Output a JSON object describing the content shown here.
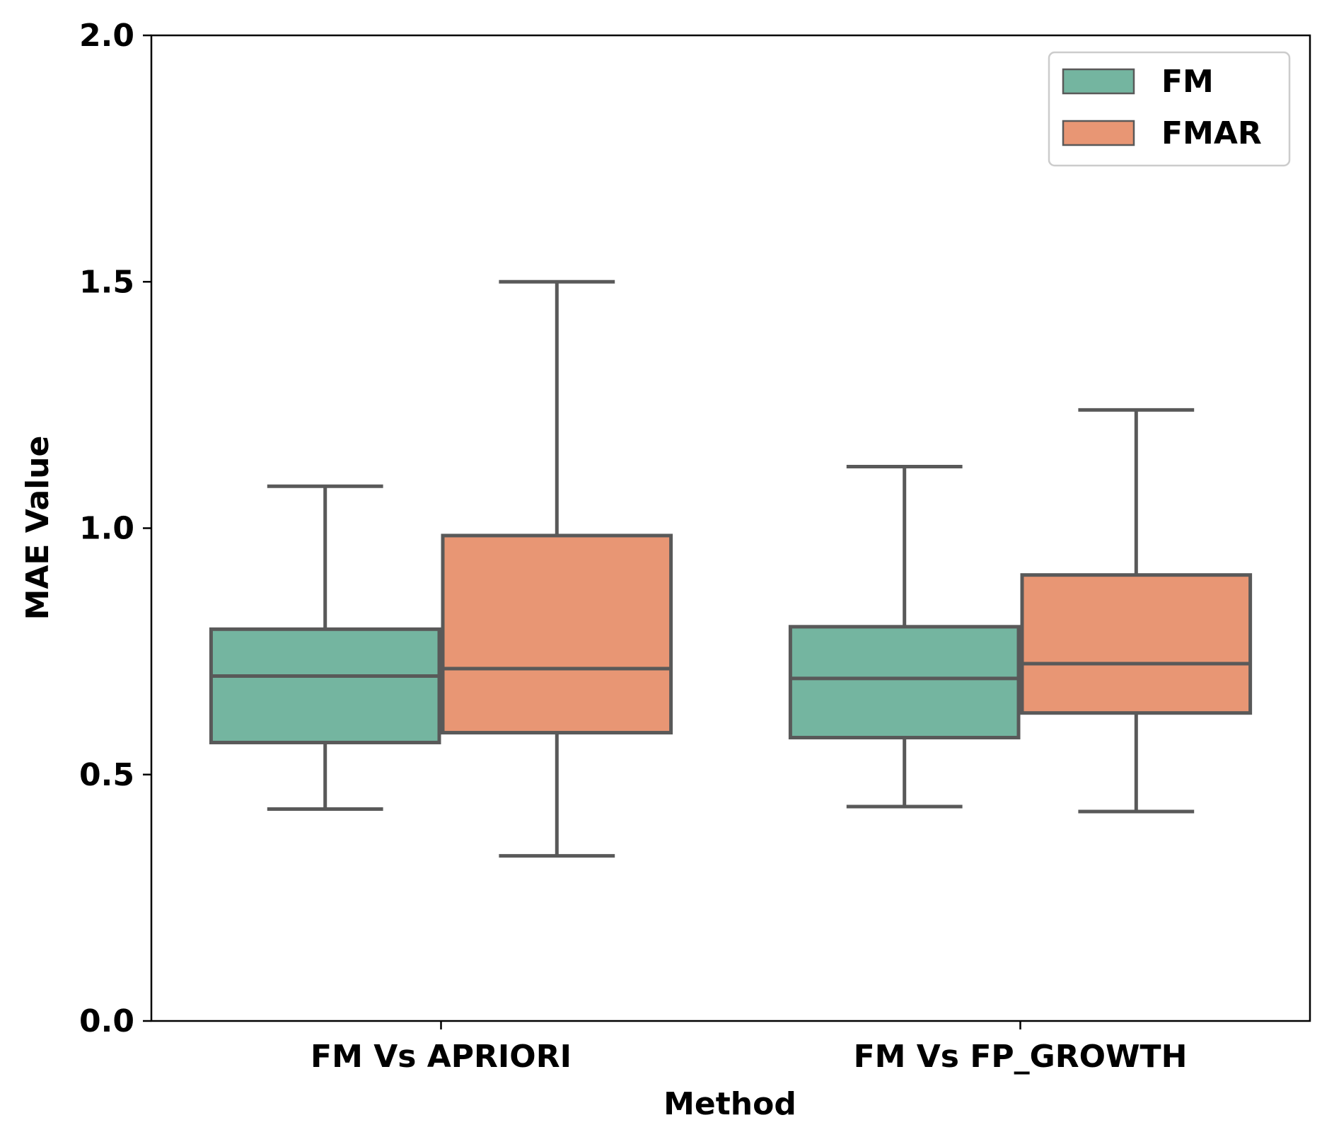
{
  "chart_data": {
    "type": "boxplot",
    "title": "",
    "xlabel": "Method",
    "ylabel": "MAE Value",
    "ylim": [
      0.0,
      2.0
    ],
    "yticks": [
      "0.0",
      "0.5",
      "1.0",
      "1.5",
      "2.0"
    ],
    "yticks_values": [
      0.0,
      0.5,
      1.0,
      1.5,
      2.0
    ],
    "categories": [
      "FM Vs APRIORI",
      "FM Vs FP_GROWTH"
    ],
    "legend": {
      "position": "top-right"
    },
    "series": [
      {
        "name": "FM",
        "color": "#74b5a0",
        "boxes": [
          {
            "whisker_low": 0.43,
            "q1": 0.565,
            "median": 0.7,
            "q3": 0.795,
            "whisker_high": 1.085
          },
          {
            "whisker_low": 0.435,
            "q1": 0.575,
            "median": 0.695,
            "q3": 0.8,
            "whisker_high": 1.125
          }
        ]
      },
      {
        "name": "FMAR",
        "color": "#e89674",
        "boxes": [
          {
            "whisker_low": 0.335,
            "q1": 0.585,
            "median": 0.715,
            "q3": 0.985,
            "whisker_high": 1.5
          },
          {
            "whisker_low": 0.425,
            "q1": 0.625,
            "median": 0.725,
            "q3": 0.905,
            "whisker_high": 1.24
          }
        ]
      }
    ],
    "edge_color": "#595959",
    "grid": false
  }
}
